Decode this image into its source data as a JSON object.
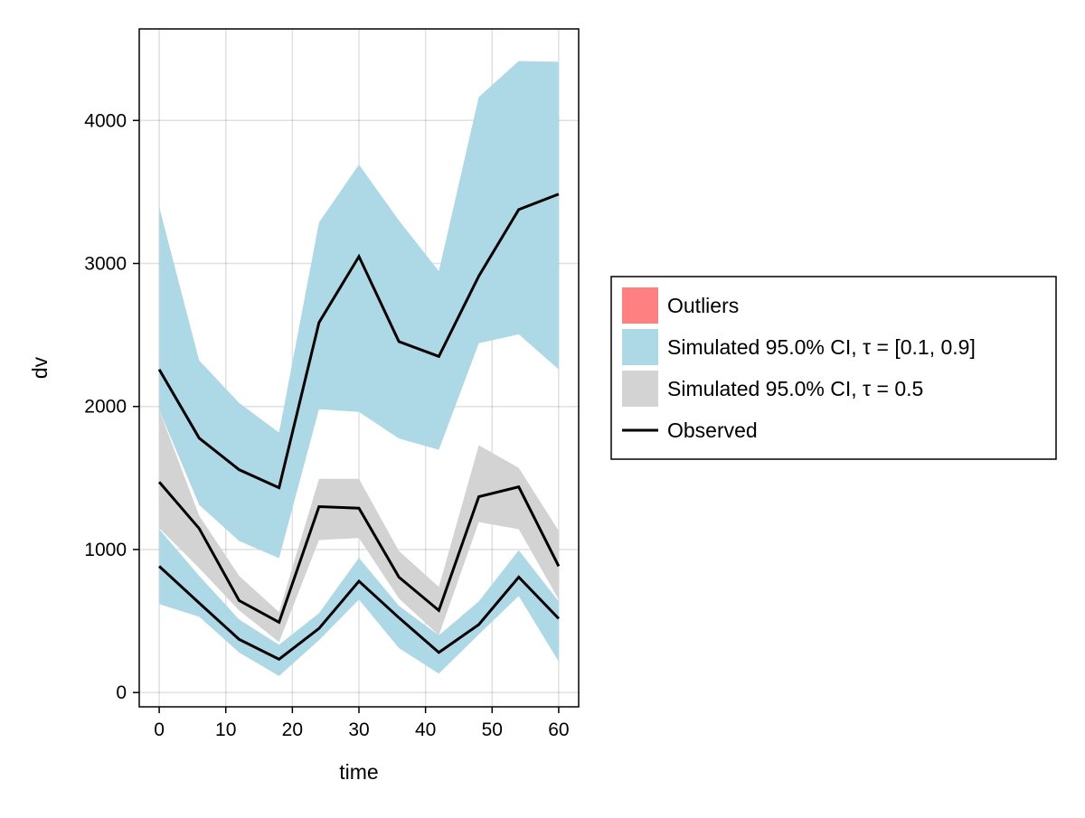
{
  "chart_data": {
    "type": "area",
    "title": "",
    "xlabel": "time",
    "ylabel": "dv",
    "xlim": [
      -3,
      63
    ],
    "ylim": [
      -100,
      4640
    ],
    "grid": true,
    "x_ticks": [
      0,
      10,
      20,
      30,
      40,
      50,
      60
    ],
    "y_ticks": [
      0,
      1000,
      2000,
      3000,
      4000
    ],
    "x": [
      0,
      6,
      12,
      18,
      24,
      30,
      36,
      42,
      48,
      54,
      60
    ],
    "bands": [
      {
        "name": "Simulated 95.0% CI, τ = 0.5",
        "color": "#d3d3d3",
        "lower": [
          1150,
          870,
          574,
          353,
          1066,
          1080,
          658,
          400,
          1192,
          1142,
          650
        ],
        "upper": [
          1975,
          1237,
          816,
          563,
          1494,
          1494,
          990,
          738,
          1729,
          1571,
          1131
        ]
      },
      {
        "name": "Simulated 95.0% CI, τ = [0.1, 0.9]",
        "color": "#add8e6",
        "lower": [
          1975,
          1312,
          1060,
          940,
          1981,
          1962,
          1776,
          1697,
          2442,
          2505,
          2259
        ],
        "upper": [
          3394,
          2322,
          2025,
          1817,
          3287,
          3691,
          3301,
          2946,
          4164,
          4416,
          4410
        ]
      },
      {
        "name": "Simulated 95.0% CI, τ = [0.1, 0.9]",
        "color": "#add8e6",
        "lower": [
          618,
          530,
          280,
          116,
          366,
          650,
          311,
          132,
          406,
          675,
          216
        ],
        "upper": [
          1142,
          816,
          511,
          334,
          555,
          942,
          606,
          400,
          637,
          995,
          637
        ]
      }
    ],
    "series": [
      {
        "name": "Observed",
        "quantile": 0.9,
        "values": [
          2259,
          1779,
          1558,
          1432,
          2587,
          3049,
          2454,
          2350,
          2912,
          3377,
          3485
        ]
      },
      {
        "name": "Observed",
        "quantile": 0.5,
        "values": [
          1472,
          1147,
          643,
          491,
          1300,
          1289,
          807,
          574,
          1369,
          1438,
          883
        ]
      },
      {
        "name": "Observed",
        "quantile": 0.1,
        "values": [
          883,
          626,
          372,
          233,
          448,
          778,
          523,
          280,
          475,
          807,
          517
        ]
      }
    ],
    "legend": {
      "placement": "right",
      "entries": [
        {
          "label": "Outliers",
          "color": "#ff8080",
          "kind": "patch"
        },
        {
          "label": "Simulated 95.0% CI, τ = [0.1, 0.9]",
          "color": "#add8e6",
          "kind": "patch"
        },
        {
          "label": "Simulated 95.0% CI, τ = 0.5",
          "color": "#d3d3d3",
          "kind": "patch"
        },
        {
          "label": "Observed",
          "color": "#000000",
          "kind": "line"
        }
      ]
    }
  }
}
